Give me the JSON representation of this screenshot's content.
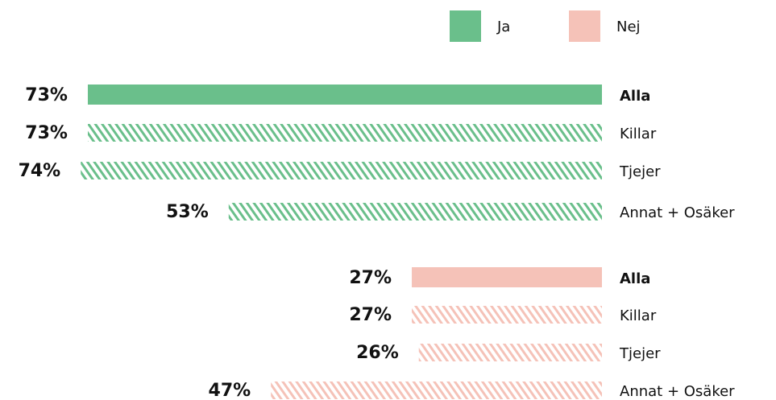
{
  "chart_data": {
    "type": "bar",
    "orientation": "horizontal",
    "categories": [
      "Alla",
      "Killar",
      "Tjejer",
      "Annat + Osäker"
    ],
    "series": [
      {
        "name": "Ja",
        "color": "#6abf8b",
        "values": [
          73,
          73,
          74,
          53
        ],
        "value_labels": [
          "73%",
          "73%",
          "74%",
          "53%"
        ]
      },
      {
        "name": "Nej",
        "color": "#f5c2b8",
        "values": [
          27,
          27,
          26,
          47
        ],
        "value_labels": [
          "27%",
          "27%",
          "26%",
          "47%"
        ]
      }
    ]
  }
}
